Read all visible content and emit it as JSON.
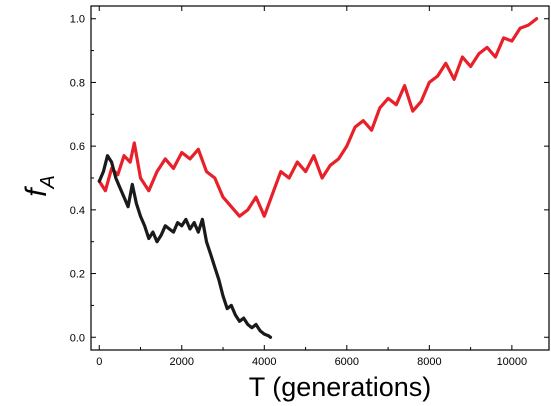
{
  "chart_data": {
    "type": "line",
    "title": "",
    "xlabel": "T (generations)",
    "ylabel_main": "f",
    "ylabel_sub": "A",
    "xlim": [
      -200,
      10900
    ],
    "ylim": [
      -0.04,
      1.04
    ],
    "xticks": [
      0,
      2000,
      4000,
      6000,
      8000,
      10000
    ],
    "xtick_labels": [
      "0",
      "2000",
      "4000",
      "6000",
      "8000",
      "10000"
    ],
    "yticks": [
      0.0,
      0.2,
      0.4,
      0.6,
      0.8,
      1.0
    ],
    "ytick_labels": [
      "0.0",
      "0.2",
      "0.4",
      "0.6",
      "0.8",
      "1.0"
    ],
    "grid": false,
    "series": [
      {
        "color": "#e8202a",
        "x": [
          0,
          150,
          300,
          450,
          600,
          750,
          850,
          1000,
          1200,
          1400,
          1600,
          1800,
          2000,
          2200,
          2400,
          2600,
          2800,
          3000,
          3200,
          3400,
          3600,
          3800,
          4000,
          4200,
          4400,
          4600,
          4800,
          5000,
          5200,
          5400,
          5600,
          5800,
          6000,
          6200,
          6400,
          6600,
          6800,
          7000,
          7200,
          7400,
          7600,
          7800,
          8000,
          8200,
          8400,
          8600,
          8800,
          9000,
          9200,
          9400,
          9600,
          9800,
          10000,
          10200,
          10400,
          10600
        ],
        "values": [
          0.49,
          0.46,
          0.53,
          0.51,
          0.57,
          0.55,
          0.61,
          0.5,
          0.46,
          0.52,
          0.56,
          0.53,
          0.58,
          0.56,
          0.59,
          0.52,
          0.5,
          0.44,
          0.41,
          0.38,
          0.4,
          0.44,
          0.38,
          0.45,
          0.52,
          0.5,
          0.55,
          0.52,
          0.57,
          0.5,
          0.54,
          0.56,
          0.6,
          0.66,
          0.68,
          0.65,
          0.72,
          0.75,
          0.73,
          0.79,
          0.71,
          0.74,
          0.8,
          0.82,
          0.86,
          0.81,
          0.88,
          0.85,
          0.89,
          0.91,
          0.88,
          0.94,
          0.93,
          0.97,
          0.98,
          1.0
        ]
      },
      {
        "color": "#1a1a1a",
        "x": [
          0,
          100,
          200,
          300,
          400,
          500,
          600,
          700,
          800,
          900,
          1000,
          1100,
          1200,
          1300,
          1400,
          1500,
          1600,
          1700,
          1800,
          1900,
          2000,
          2100,
          2200,
          2300,
          2400,
          2500,
          2600,
          2700,
          2800,
          2900,
          3000,
          3100,
          3200,
          3300,
          3400,
          3500,
          3600,
          3700,
          3800,
          3900,
          4000,
          4100,
          4150
        ],
        "values": [
          0.49,
          0.52,
          0.57,
          0.55,
          0.5,
          0.47,
          0.44,
          0.41,
          0.48,
          0.42,
          0.38,
          0.35,
          0.31,
          0.33,
          0.3,
          0.32,
          0.35,
          0.34,
          0.33,
          0.36,
          0.35,
          0.37,
          0.34,
          0.36,
          0.33,
          0.37,
          0.3,
          0.26,
          0.22,
          0.18,
          0.13,
          0.09,
          0.1,
          0.07,
          0.05,
          0.06,
          0.04,
          0.03,
          0.04,
          0.02,
          0.01,
          0.005,
          0.0
        ]
      }
    ]
  }
}
